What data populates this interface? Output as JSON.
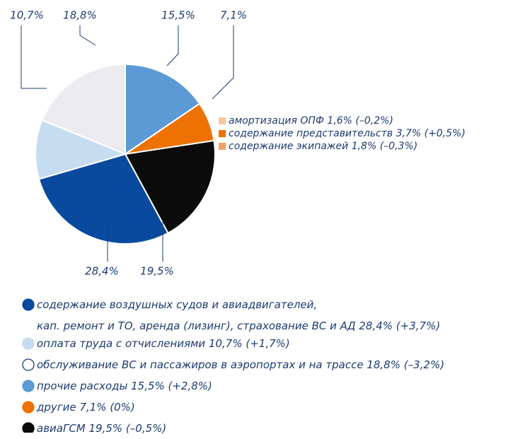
{
  "chart_data": {
    "type": "pie",
    "categories": [
      "содержание воздушных судов и авиадвигателей,\nкап. ремонт и ТО, аренда (лизинг), страхование ВС и АД 28,4% (+3,7%)",
      "оплата труда с отчислениями 10,7% (+1,7%)",
      "обслуживание ВС и пассажиров в аэропортах и на трассе 18,8% (–3,2%)",
      "прочие расходы 15,5% (+2,8%)",
      "другие 7,1% (0%)",
      "авиаГСМ 19,5% (–0,5%)"
    ],
    "values": [
      28.4,
      10.7,
      18.8,
      15.5,
      7.1,
      19.5
    ],
    "value_labels": [
      "28,4%",
      "10,7%",
      "18,8%",
      "15,5%",
      "7,1%",
      "19,5%"
    ],
    "colors": [
      "#0a4a9e",
      "#c6dcf1",
      "#ececf0",
      "#5b9ad4",
      "#ee7203",
      "#0b0b0b"
    ],
    "details": [
      {
        "label": "амортизация ОПФ 1,6% (–0,2%)",
        "color": "#f7c6a0"
      },
      {
        "label": "содержание представительств 3,7% (+0,5%)",
        "color": "#ee7203"
      },
      {
        "label": "содержание экипажей 1,8% (–0,3%)",
        "color": "#f3a066"
      }
    ]
  }
}
